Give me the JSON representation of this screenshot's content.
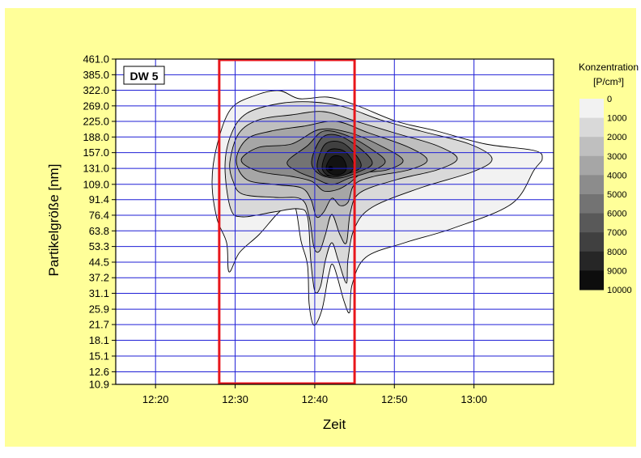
{
  "chart_data": {
    "type": "contour",
    "title": "",
    "panel_label": "DW 5",
    "xlabel": "Zeit",
    "ylabel": "Partikelgröße [nm]",
    "x_ticks": [
      "12:20",
      "12:30",
      "12:40",
      "12:50",
      "13:00"
    ],
    "xlim": [
      "12:15",
      "13:10"
    ],
    "y_ticks": [
      461.0,
      385.0,
      322.0,
      269.0,
      225.0,
      188.0,
      157.0,
      131.0,
      109.0,
      91.4,
      76.4,
      63.8,
      53.3,
      44.5,
      37.2,
      31.1,
      25.9,
      21.7,
      18.1,
      15.1,
      12.6,
      10.9
    ],
    "y_tick_labels": [
      "461.0",
      "385.0",
      "322.0",
      "269.0",
      "225.0",
      "188.0",
      "157.0",
      "131.0",
      "109.0",
      "91.4",
      "76.4",
      "63.8",
      "53.3",
      "44.5",
      "37.2",
      "31.1",
      "25.9",
      "21.7",
      "18.1",
      "15.1",
      "12.6",
      "10.9"
    ],
    "ylim": [
      10.9,
      461.0
    ],
    "y_scale": "log",
    "grid": true,
    "highlight_box": {
      "x_from": "12:28",
      "x_to": "12:45",
      "y_from": 10.9,
      "y_to": 461.0,
      "color": "#e8161b"
    },
    "peak": {
      "x": "12:42",
      "y": 131.0,
      "value": 10000
    },
    "colorbar": {
      "title_line1": "Konzentration",
      "title_line2": "[P/cm³]",
      "levels": [
        "0",
        "1000",
        "2000",
        "3000",
        "4000",
        "5000",
        "6000",
        "7000",
        "8000",
        "9000",
        "10000"
      ]
    },
    "colors": {
      "background": "#ffff99",
      "grid": "#1f1fd6",
      "box": "#e8161b",
      "low": "#ffffff",
      "high": "#000000"
    }
  }
}
